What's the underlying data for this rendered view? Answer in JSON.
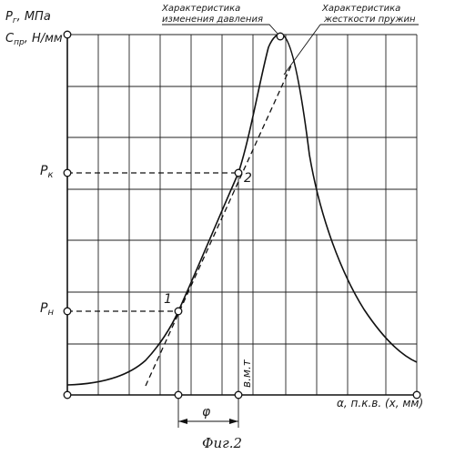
{
  "y_axis": {
    "label_line1": "P",
    "label_line1_sub": "г",
    "label_line1_unit": ", МПа",
    "label_line2": "C",
    "label_line2_sub": "пр",
    "label_line2_unit": ", Н/мм",
    "tick_pk": "P",
    "tick_pk_sub": "к",
    "tick_pn": "P",
    "tick_pn_sub": "н"
  },
  "x_axis": {
    "label": "α, п.к.в. (x, мм)",
    "tick_vmt": "в.м.т",
    "phi": "φ"
  },
  "annotations": {
    "pressure_line1": "Характеристика",
    "pressure_line2": "изменения давления",
    "stiffness_line1": "Характеристика",
    "stiffness_line2": "жесткости пружин",
    "point1": "1",
    "point2": "2"
  },
  "caption": "Фиг.2",
  "icons": {
    "points": "circle-marker",
    "phi_dimension": "double-arrow"
  }
}
